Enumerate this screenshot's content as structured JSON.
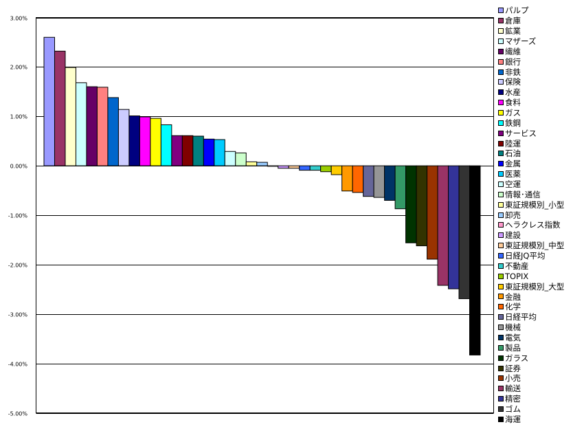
{
  "chart_data": {
    "type": "bar",
    "title": "",
    "xlabel": "",
    "ylabel": "",
    "ylim": [
      -5.0,
      3.0
    ],
    "yticks": [
      "3.00%",
      "2.00%",
      "1.00%",
      "0.00%",
      "-1.00%",
      "-2.00%",
      "-3.00%",
      "-4.00%",
      "-5.00%"
    ],
    "grid": true,
    "legend_position": "right",
    "series": [
      {
        "name": "パルプ",
        "value": 2.6,
        "color": "#9999FF"
      },
      {
        "name": "倉庫",
        "value": 2.32,
        "color": "#993366"
      },
      {
        "name": "鉱業",
        "value": 1.99,
        "color": "#FFFFCC"
      },
      {
        "name": "マザーズ",
        "value": 1.68,
        "color": "#CCFFFF"
      },
      {
        "name": "繊維",
        "value": 1.6,
        "color": "#660066"
      },
      {
        "name": "銀行",
        "value": 1.59,
        "color": "#FF8080"
      },
      {
        "name": "非鉄",
        "value": 1.38,
        "color": "#0066CC"
      },
      {
        "name": "保険",
        "value": 1.14,
        "color": "#CCCCFF"
      },
      {
        "name": "水産",
        "value": 1.01,
        "color": "#000080"
      },
      {
        "name": "食料",
        "value": 0.99,
        "color": "#FF00FF"
      },
      {
        "name": "ガス",
        "value": 0.96,
        "color": "#FFFF00"
      },
      {
        "name": "鉄鋼",
        "value": 0.83,
        "color": "#00FFFF"
      },
      {
        "name": "サービス",
        "value": 0.61,
        "color": "#800080"
      },
      {
        "name": "陸運",
        "value": 0.61,
        "color": "#800000"
      },
      {
        "name": "石油",
        "value": 0.6,
        "color": "#008080"
      },
      {
        "name": "金属",
        "value": 0.54,
        "color": "#0000FF"
      },
      {
        "name": "医薬",
        "value": 0.53,
        "color": "#00CCFF"
      },
      {
        "name": "空運",
        "value": 0.29,
        "color": "#CCFFFF"
      },
      {
        "name": "情報･通信",
        "value": 0.26,
        "color": "#CCFFCC"
      },
      {
        "name": "東証規模別_小型",
        "value": 0.08,
        "color": "#FFFF99"
      },
      {
        "name": "卸売",
        "value": 0.07,
        "color": "#99CCFF"
      },
      {
        "name": "ヘラクレス指数",
        "value": -0.01,
        "color": "#FF99CC"
      },
      {
        "name": "建設",
        "value": -0.05,
        "color": "#CC99FF"
      },
      {
        "name": "東証規模別_中型",
        "value": -0.05,
        "color": "#FFCC99"
      },
      {
        "name": "日経JQ平均",
        "value": -0.09,
        "color": "#3366FF"
      },
      {
        "name": "不動産",
        "value": -0.09,
        "color": "#33CCCC"
      },
      {
        "name": "TOPIX",
        "value": -0.12,
        "color": "#99CC00"
      },
      {
        "name": "東証規模別_大型",
        "value": -0.18,
        "color": "#FFCC00"
      },
      {
        "name": "金融",
        "value": -0.51,
        "color": "#FF9900"
      },
      {
        "name": "化学",
        "value": -0.54,
        "color": "#FF6600"
      },
      {
        "name": "日経平均",
        "value": -0.62,
        "color": "#666699"
      },
      {
        "name": "機械",
        "value": -0.64,
        "color": "#969696"
      },
      {
        "name": "電気",
        "value": -0.7,
        "color": "#003366"
      },
      {
        "name": "製品",
        "value": -0.87,
        "color": "#339966"
      },
      {
        "name": "ガラス",
        "value": -1.56,
        "color": "#003300"
      },
      {
        "name": "証券",
        "value": -1.62,
        "color": "#333300"
      },
      {
        "name": "小売",
        "value": -1.89,
        "color": "#993300"
      },
      {
        "name": "輸送",
        "value": -2.42,
        "color": "#993366"
      },
      {
        "name": "精密",
        "value": -2.49,
        "color": "#333399"
      },
      {
        "name": "ゴム",
        "value": -2.69,
        "color": "#333333"
      },
      {
        "name": "海運",
        "value": -3.83,
        "color": "#000000"
      }
    ]
  }
}
